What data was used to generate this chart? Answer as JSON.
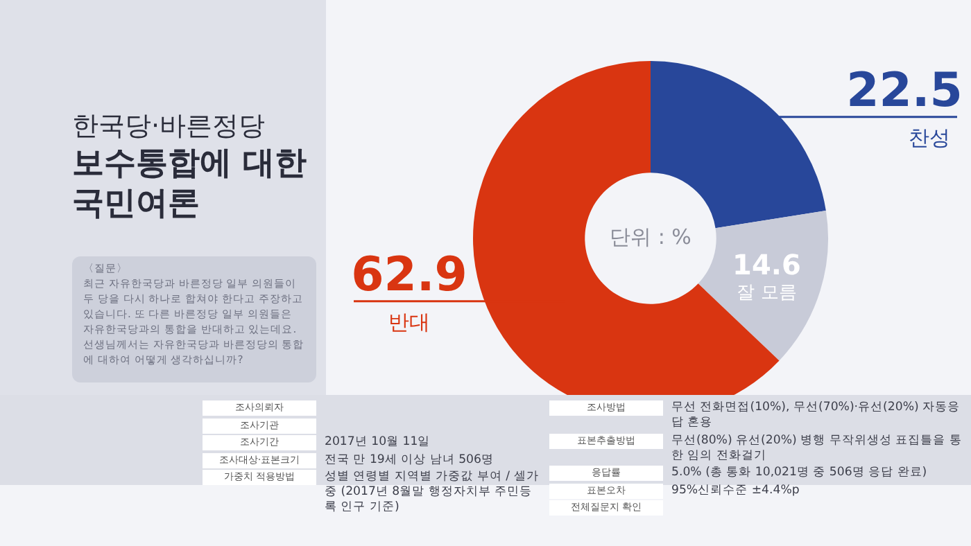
{
  "chart_data": {
    "type": "donut",
    "title": "한국당·바른정당",
    "subtitle": "보수통합에 대한 국민여론",
    "categories": [
      "찬성",
      "잘 모름",
      "반대"
    ],
    "values": [
      22.5,
      14.6,
      62.9
    ],
    "colors": [
      "#28479a",
      "#c8cbd8",
      "#d93511"
    ],
    "data_labels": true,
    "legend": false,
    "annotations": [
      "단위 : %",
      "〈질문〉",
      "최근 자유한국당과 바른정당 일부 의원들이 두 당을 다시 하나로 합쳐야 한다고 주장하고 있습니다.  또 다른 바른정당 일부 의원들은 자유한국당과의 통합을 반대하고 있는데요. 선생님께서는 자유한국당과 바른정당의 통합에 대하여 어떻게 생각하십니까?",
      "조사의뢰자",
      "조사기관",
      "조사기간",
      "2017년 10월 11일",
      "조사대상·표본크기",
      "전국 만 19세 이상 남녀 506명",
      "가중치 적용방법",
      "성별 연령별 지역별 가중값 부여 / 셀가중 (2017년 8월말 행정자치부 주민등록 인구 기준)",
      "조사방법",
      "무선 전화면접(10%), 무선(70%)·유선(20%) 자동응답 혼용",
      "표본추출방법",
      "무선(80%) 유선(20%) 병행 무작위생성 표집틀을 통한 임의 전화걸기",
      "응답률",
      "5.0% (총 통화 10,021명 중 506명 응답 완료)",
      "표본오차",
      "95%신뢰수준 ±4.4%p",
      "전체질문지 확인"
    ]
  }
}
